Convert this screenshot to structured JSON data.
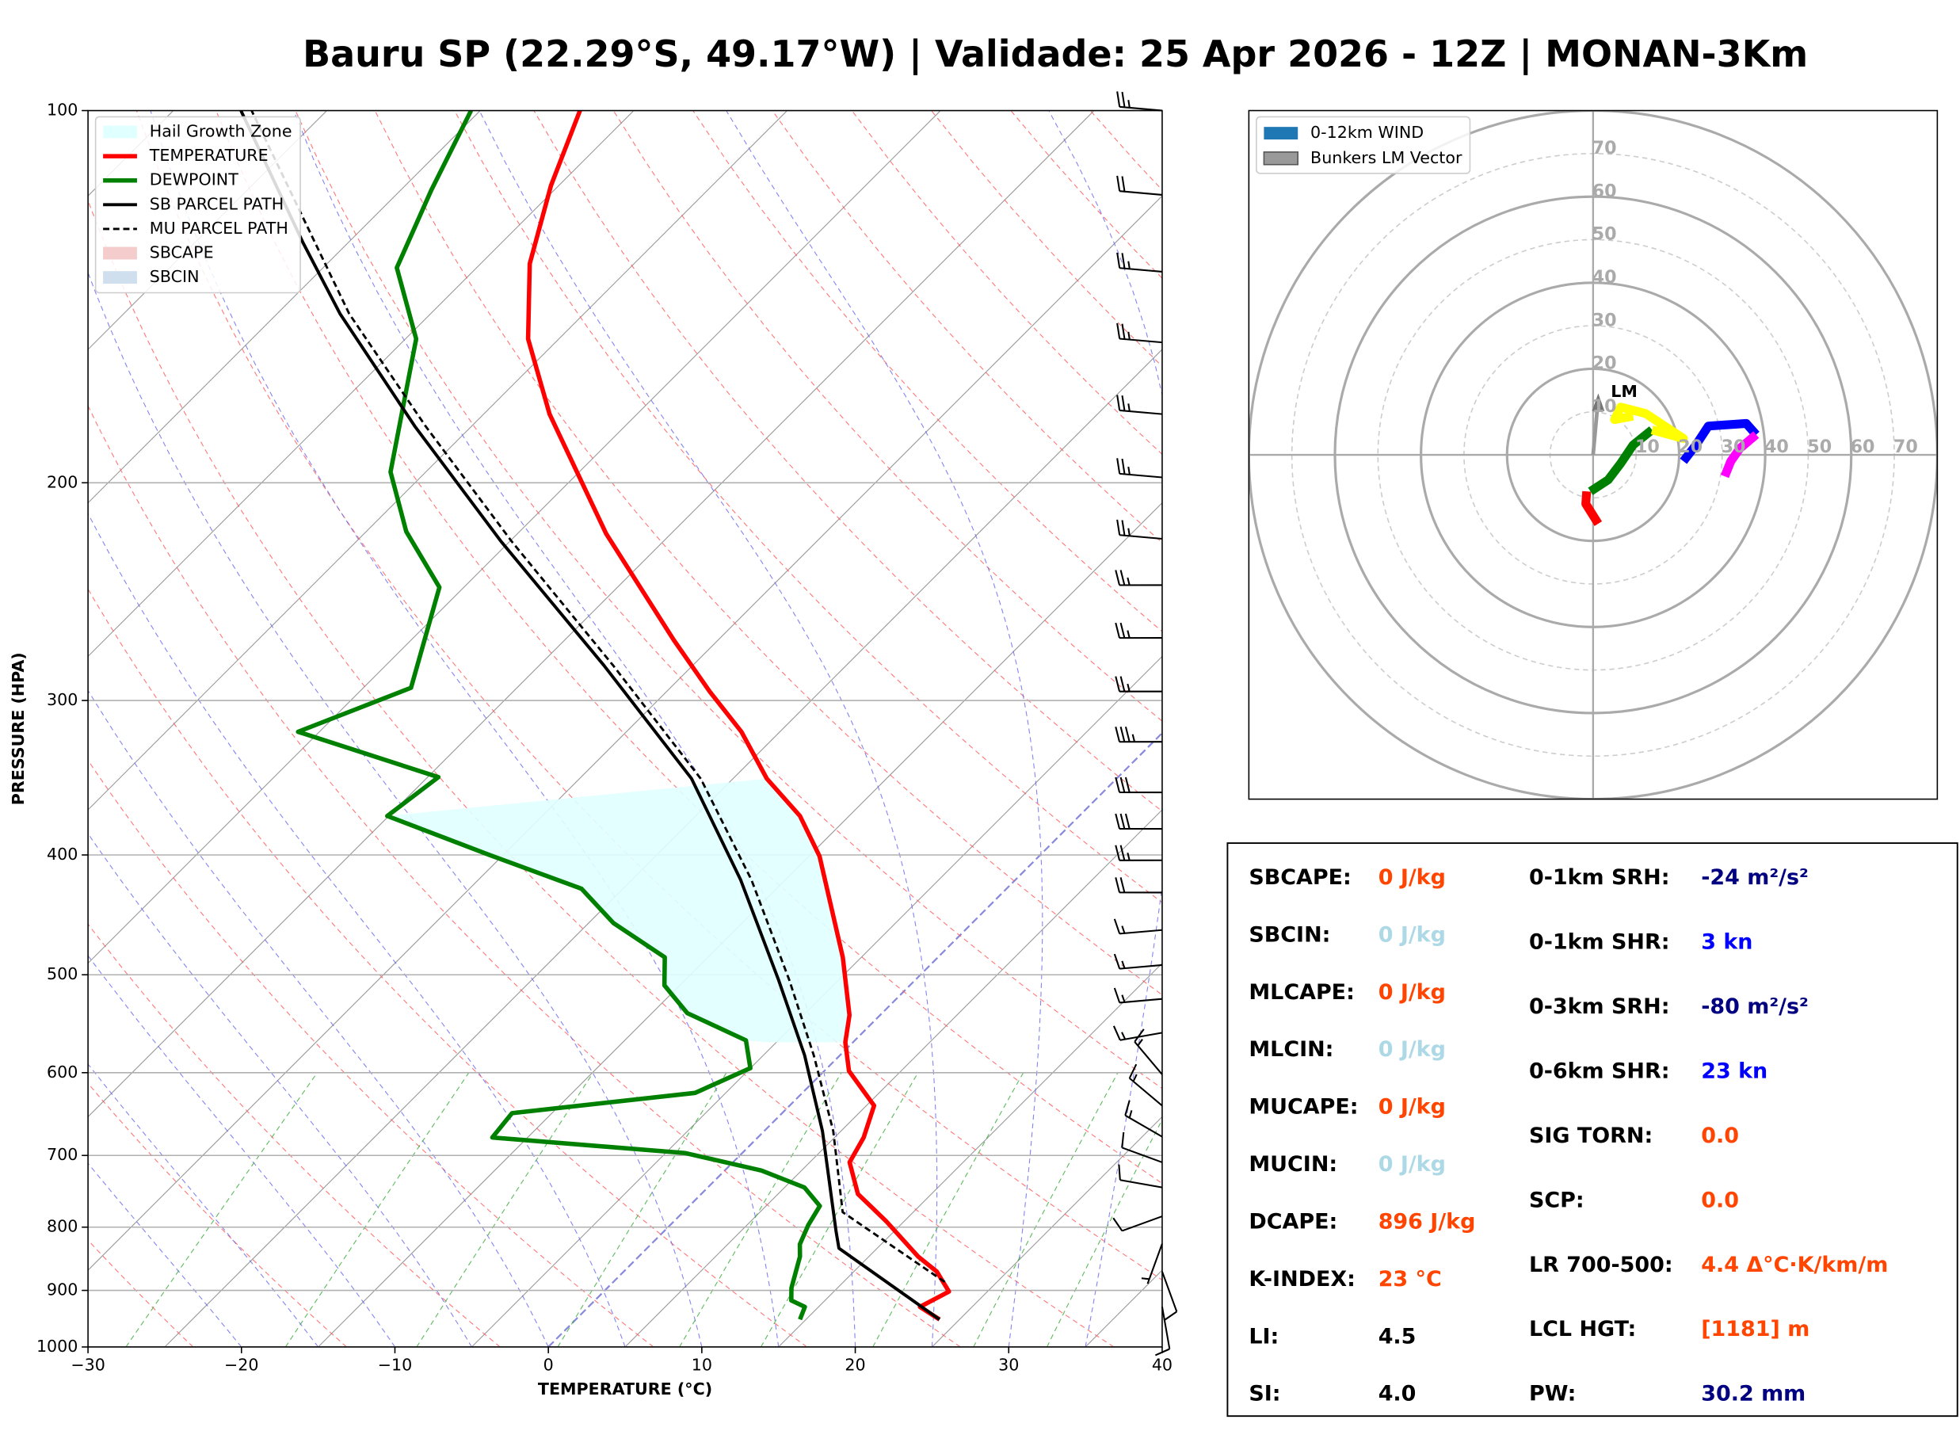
{
  "chart_data": [
    {
      "type": "skewt",
      "title": "Bauru SP (22.29°S, 49.17°W) | Validade: 25 Apr 2026 - 12Z | MONAN-3Km",
      "x_label": "TEMPERATURE (°C)",
      "y_label": "PRESSURE (HPA)",
      "xlim": [
        -30,
        40
      ],
      "xticks": [
        {
          "value": -30,
          "label": "−30"
        },
        {
          "value": -20,
          "label": "−20"
        },
        {
          "value": -10,
          "label": "−10"
        },
        0,
        10,
        20,
        30,
        40
      ],
      "ylim": [
        1000,
        100
      ],
      "yticks": [
        1000,
        900,
        800,
        700,
        600,
        500,
        400,
        300,
        200,
        100
      ],
      "log_y": true,
      "grid": true,
      "legend": "upper left",
      "areas": [
        {
          "name": "Hail Growth Zone",
          "color": "#e0ffff",
          "pressure": [
            372,
            347,
            372,
            401,
            484,
            539,
            567,
            567,
            565,
            537,
            510,
            484,
            454,
            426,
            400
          ],
          "values": [
            -45.1,
            -22.8,
            -18.2,
            -14.3,
            -6.2,
            -2.0,
            -0.5,
            -5.6,
            -7.1,
            -12.7,
            -16.0,
            -17.8,
            -23.4,
            -27.7,
            -35.9
          ]
        },
        {
          "name": "SBCAPE",
          "color": "#f4cccc"
        },
        {
          "name": "SBCIN",
          "color": "#cfdfee"
        }
      ],
      "series": [
        {
          "name": "TEMPERATURE",
          "color": "#ff0000",
          "linestyle": "solid",
          "width": 3.5,
          "pressure": [
            950,
            928,
            902,
            869,
            845,
            791,
            752,
            709,
            677,
            638,
            598,
            567,
            539,
            484,
            401,
            372,
            347,
            318,
            295,
            268,
            220,
            176,
            153,
            133,
            115,
            100
          ],
          "values": [
            23.7,
            21.6,
            22.5,
            20.4,
            18.2,
            13.8,
            10.2,
            7.6,
            6.9,
            5.5,
            1.6,
            -0.5,
            -2.0,
            -6.2,
            -14.3,
            -18.2,
            -22.8,
            -27.5,
            -32.2,
            -37.9,
            -49.2,
            -60.7,
            -67.0,
            -71.8,
            -75.5,
            -78.5
          ]
        },
        {
          "name": "DEWPOINT",
          "color": "#008000",
          "linestyle": "solid",
          "width": 3.5,
          "pressure": [
            950,
            928,
            917,
            896,
            845,
            826,
            797,
            769,
            743,
            720,
            697,
            677,
            647,
            623,
            595,
            565,
            537,
            510,
            484,
            454,
            426,
            400,
            372,
            346,
            318,
            293,
            243,
            219,
            196,
            153,
            134,
            116,
            100
          ],
          "values": [
            14.6,
            14.1,
            12.8,
            12.0,
            10.5,
            9.7,
            9.0,
            8.5,
            6.3,
            2.4,
            -3.7,
            -17.3,
            -17.6,
            -7.0,
            -5.0,
            -7.1,
            -12.7,
            -16.0,
            -17.8,
            -23.4,
            -27.7,
            -35.9,
            -45.1,
            -44.3,
            -56.4,
            -51.9,
            -56.6,
            -62.4,
            -67.3,
            -74.3,
            -80.2,
            -83.0,
            -85.6
          ]
        },
        {
          "name": "SB PARCEL PATH",
          "color": "#000000",
          "linestyle": "solid",
          "width": 2.5,
          "pressure": [
            950,
            832,
            806,
            669,
            581,
            505,
            419,
            347,
            281,
            223,
            180,
            146,
            128,
            100
          ],
          "values": [
            23.7,
            12.5,
            11.2,
            3.8,
            -2.3,
            -8.9,
            -17.9,
            -27.7,
            -40.8,
            -55.6,
            -68.7,
            -80.9,
            -87.9,
            -100.6
          ]
        },
        {
          "name": "MU PARCEL PATH",
          "color": "#000000",
          "linestyle": "dashed",
          "width": 1.8,
          "pressure": [
            886,
            778,
            669,
            581,
            505,
            419,
            347,
            281,
            223,
            180,
            146,
            100
          ],
          "values": [
            21.6,
            10.4,
            4.5,
            -1.7,
            -8.2,
            -17.2,
            -27.1,
            -40.2,
            -54.9,
            -68.0,
            -80.3,
            -99.9
          ]
        }
      ],
      "wind": {
        "pressure": [
          100,
          117,
          135,
          154,
          176,
          198,
          222,
          242,
          267,
          295,
          324,
          356,
          381,
          404,
          429,
          460,
          491,
          523,
          557,
          602,
          638,
          676,
          709,
          743,
          784,
          825,
          869,
          928
        ],
        "speed": [
          25,
          20,
          25,
          25,
          25,
          25,
          25,
          25,
          25,
          25,
          35,
          30,
          30,
          25,
          20,
          15,
          15,
          15,
          15,
          15,
          15,
          15,
          10,
          10,
          10,
          5,
          10,
          10
        ],
        "direction": [
          275,
          275,
          275,
          275,
          275,
          275,
          275,
          270,
          270,
          270,
          270,
          270,
          270,
          270,
          270,
          265,
          265,
          265,
          260,
          320,
          310,
          300,
          290,
          280,
          250,
          200,
          160,
          170
        ]
      }
    },
    {
      "type": "hodograph",
      "xlim": [
        -80,
        80
      ],
      "ylim": [
        -80,
        80
      ],
      "ring_ticks": [
        10,
        20,
        30,
        40,
        50,
        60,
        70
      ],
      "legend": [
        {
          "name": "0-12km WIND",
          "color": "#1f77b4"
        },
        {
          "name": "Bunkers LM Vector",
          "color": "#999999"
        }
      ],
      "series": [
        {
          "color": "#ff0000",
          "u": [
            1.2,
            -1.7,
            -1.5
          ],
          "v": [
            -16.0,
            -11.4,
            -8.5
          ]
        },
        {
          "color": "#008000",
          "u": [
            -0.6,
            3.5,
            6.4,
            9.3,
            13.7
          ],
          "v": [
            -8.5,
            -5.8,
            -2.0,
            2.3,
            5.8
          ]
        },
        {
          "color": "#ffff00",
          "u": [
            13.7,
            21.0,
            12.2,
            6.4,
            5.0,
            9.3
          ],
          "v": [
            5.8,
            3.8,
            9.6,
            11.1,
            8.2,
            9.0
          ]
        },
        {
          "color": "#0000ff",
          "u": [
            21.0,
            23.9,
            26.8,
            35.6,
            37.9
          ],
          "v": [
            -1.5,
            2.3,
            6.7,
            7.3,
            4.7
          ]
        },
        {
          "color": "#ff00ff",
          "u": [
            37.9,
            34.1,
            32.0,
            30.6
          ],
          "v": [
            4.7,
            1.5,
            -1.5,
            -5.0
          ]
        }
      ],
      "lm_vector": {
        "label": "LM",
        "u": 1.2,
        "v": 13.1,
        "color": "#999999"
      }
    }
  ],
  "indices": {
    "left": [
      {
        "label": "SBCAPE:",
        "value": "0 J/kg",
        "color": "#ff4500"
      },
      {
        "label": "SBCIN:",
        "value": "0 J/kg",
        "color": "#add8e6"
      },
      {
        "label": "MLCAPE:",
        "value": "0 J/kg",
        "color": "#ff4500"
      },
      {
        "label": "MLCIN:",
        "value": "0 J/kg",
        "color": "#add8e6"
      },
      {
        "label": "MUCAPE:",
        "value": "0 J/kg",
        "color": "#ff4500"
      },
      {
        "label": "MUCIN:",
        "value": "0 J/kg",
        "color": "#add8e6"
      },
      {
        "label": "DCAPE:",
        "value": "896 J/kg",
        "color": "#ff4500"
      },
      {
        "label": "K-INDEX:",
        "value": "23 °C",
        "color": "#ff4500"
      },
      {
        "label": "LI:",
        "value": "4.5",
        "color": "#000000"
      },
      {
        "label": "SI:",
        "value": "4.0",
        "color": "#000000"
      }
    ],
    "right": [
      {
        "label": "0-1km SRH:",
        "value": "-24 m²/s²",
        "color": "#000080"
      },
      {
        "label": "0-1km SHR:",
        "value": "3 kn",
        "color": "#0000ff"
      },
      {
        "label": "0-3km SRH:",
        "value": "-80 m²/s²",
        "color": "#000080"
      },
      {
        "label": "0-6km SHR:",
        "value": "23 kn",
        "color": "#0000ff"
      },
      {
        "label": "SIG TORN:",
        "value": "0.0",
        "color": "#ff4500"
      },
      {
        "label": "SCP:",
        "value": "0.0",
        "color": "#ff4500"
      },
      {
        "label": "LR 700-500:",
        "value": "4.4 Δ°C·K/km/m",
        "color": "#ff4500"
      },
      {
        "label": "LCL HGT:",
        "value": "[1181] m",
        "color": "#ff4500"
      },
      {
        "label": "PW:",
        "value": "30.2 mm",
        "color": "#000080"
      }
    ]
  }
}
